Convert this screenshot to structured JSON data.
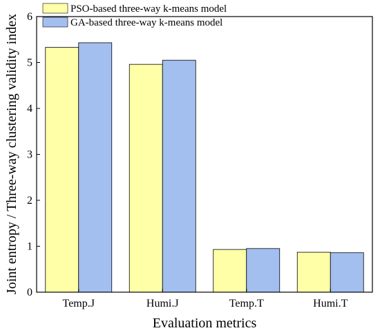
{
  "chart_data": {
    "type": "bar",
    "title": "",
    "xlabel": "Evaluation metrics",
    "ylabel": "Joint entropy / Three-way clustering validity index",
    "categories": [
      "Temp.J",
      "Humi.J",
      "Temp.T",
      "Humi.T"
    ],
    "ylim": [
      0,
      6
    ],
    "yticks": [
      0,
      1,
      2,
      3,
      4,
      5,
      6
    ],
    "grid": false,
    "legend_position": "top-left",
    "series": [
      {
        "name": "PSO-based three-way k-means model",
        "color": "#ffffa8",
        "values": [
          5.33,
          4.96,
          0.93,
          0.87
        ]
      },
      {
        "name": "GA-based three-way k-means model",
        "color": "#a3bff0",
        "values": [
          5.43,
          5.05,
          0.95,
          0.86
        ]
      }
    ]
  }
}
